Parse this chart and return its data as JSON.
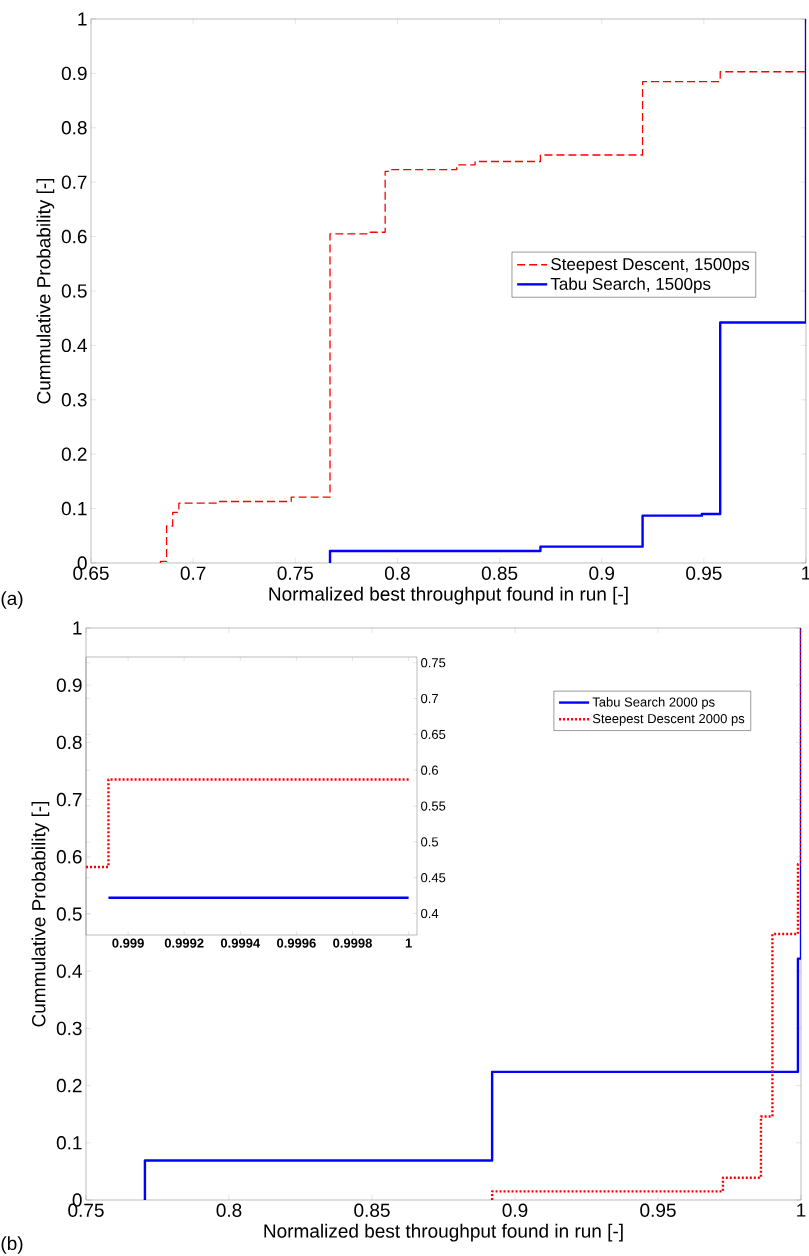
{
  "chart_data": [
    {
      "type": "step",
      "xlabel": "Normalized best throughput found in run [-]",
      "ylabel": "Cummulative Probability [-]",
      "annotations": [
        "(a)"
      ],
      "xlim": [
        0.65,
        1
      ],
      "ylim": [
        0,
        1
      ],
      "xticks": [
        0.65,
        0.7,
        0.75,
        0.8,
        0.85,
        0.9,
        0.95,
        1
      ],
      "yticks": [
        0,
        0.1,
        0.2,
        0.3,
        0.4,
        0.5,
        0.6,
        0.7,
        0.8,
        0.9,
        1
      ],
      "legend": "right",
      "series": [
        {
          "name": "Steepest Descent, 1500ps",
          "color": "#ff0000",
          "line_style": "dashed",
          "x": [
            0.684,
            0.684,
            0.687,
            0.69,
            0.693,
            0.713,
            0.748,
            0.767,
            0.785,
            0.794,
            0.796,
            0.829,
            0.838,
            0.87,
            0.92,
            0.958,
            1.0
          ],
          "values": [
            0,
            0.003,
            0.068,
            0.093,
            0.11,
            0.113,
            0.121,
            0.605,
            0.608,
            0.72,
            0.723,
            0.732,
            0.738,
            0.75,
            0.885,
            0.903,
            0.903
          ]
        },
        {
          "name": "Tabu Search, 1500ps",
          "color": "#0000ff",
          "line_style": "solid",
          "x": [
            0.767,
            0.767,
            0.87,
            0.92,
            0.949,
            0.958,
            1.0
          ],
          "values": [
            0,
            0.022,
            0.03,
            0.087,
            0.09,
            0.442,
            1.0
          ]
        }
      ]
    },
    {
      "type": "step",
      "xlabel": "Normalized best throughput found in run [-]",
      "ylabel": "Cummulative Probability [-]",
      "annotations": [
        "(b)"
      ],
      "xlim": [
        0.75,
        1
      ],
      "ylim": [
        0,
        1
      ],
      "xticks": [
        0.75,
        0.8,
        0.85,
        0.9,
        0.95,
        1
      ],
      "yticks": [
        0,
        0.1,
        0.2,
        0.3,
        0.4,
        0.5,
        0.6,
        0.7,
        0.8,
        0.9,
        1
      ],
      "legend": "top right",
      "series": [
        {
          "name": "Tabu Search 2000 ps",
          "color": "#0000ff",
          "line_style": "solid",
          "x": [
            0.7706,
            0.7706,
            0.892,
            0.99893,
            1.0
          ],
          "values": [
            0,
            0.069,
            0.224,
            0.422,
            1.0
          ]
        },
        {
          "name": "Steepest Descent 2000 ps",
          "color": "#ff0000",
          "line_style": "dotted",
          "x": [
            0.892,
            0.892,
            0.9727,
            0.986,
            0.99,
            0.99893,
            1.0
          ],
          "values": [
            0,
            0.015,
            0.039,
            0.146,
            0.465,
            0.587,
            1.0
          ]
        }
      ]
    },
    {
      "type": "step",
      "xlim": [
        0.99885,
        1.00003
      ],
      "ylim": [
        0.37,
        0.758
      ],
      "xticks": [
        0.999,
        0.9992,
        0.9994,
        0.9996,
        0.9998,
        1
      ],
      "yticks": [
        0.4,
        0.45,
        0.5,
        0.55,
        0.6,
        0.65,
        0.7,
        0.75
      ],
      "series": [
        {
          "color": "#0000ff",
          "line_style": "solid",
          "x": [
            0.99893,
            1.0
          ],
          "values": [
            0.422,
            0.422
          ]
        },
        {
          "color": "#ff0000",
          "line_style": "dotted",
          "x": [
            0.99885,
            0.99893,
            1.0
          ],
          "values": [
            0.465,
            0.587,
            0.587
          ]
        }
      ]
    }
  ]
}
